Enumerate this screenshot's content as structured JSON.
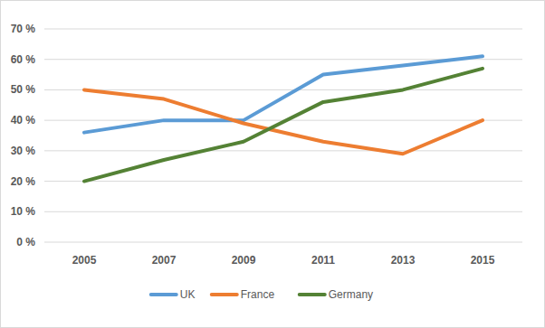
{
  "chart_data": {
    "type": "line",
    "categories": [
      "2005",
      "2007",
      "2009",
      "2011",
      "2013",
      "2015"
    ],
    "series": [
      {
        "name": "UK",
        "color": "#5b9bd5",
        "values": [
          36,
          40,
          40,
          55,
          58,
          61
        ]
      },
      {
        "name": "France",
        "color": "#ed7d31",
        "values": [
          50,
          47,
          39,
          33,
          29,
          40
        ]
      },
      {
        "name": "Germany",
        "color": "#548235",
        "values": [
          20,
          27,
          33,
          46,
          50,
          57
        ]
      }
    ],
    "ylim": [
      0,
      70
    ],
    "yticks": [
      {
        "value": 0,
        "label": "0 %"
      },
      {
        "value": 10,
        "label": "10 %"
      },
      {
        "value": 20,
        "label": "20 %"
      },
      {
        "value": 30,
        "label": "30 %"
      },
      {
        "value": 40,
        "label": "40 %"
      },
      {
        "value": 50,
        "label": "50 %"
      },
      {
        "value": 60,
        "label": "60 %"
      },
      {
        "value": 70,
        "label": "70 %"
      }
    ],
    "grid": true,
    "legend": "bottom"
  }
}
